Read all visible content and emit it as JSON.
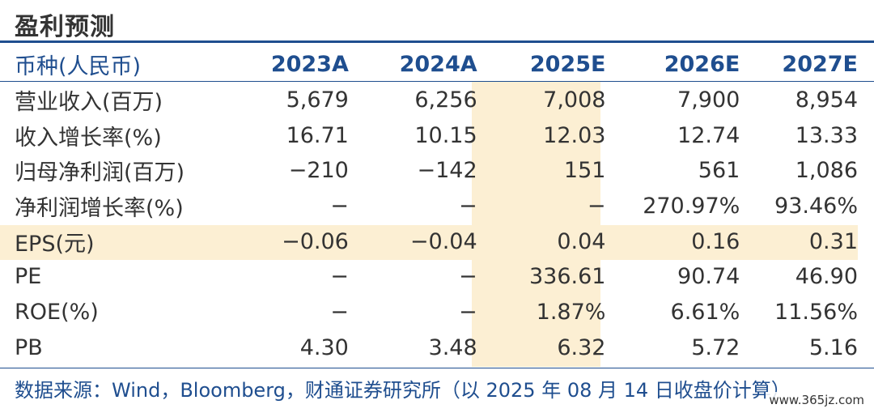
{
  "title": "盈利预测",
  "table": {
    "header": {
      "label": "币种(人民币)",
      "years": [
        "2023A",
        "2024A",
        "2025E",
        "2026E",
        "2027E"
      ]
    },
    "rows": [
      {
        "label": "营业收入(百万)",
        "values": [
          "5,679",
          "6,256",
          "7,008",
          "7,900",
          "8,954"
        ]
      },
      {
        "label": "收入增长率(%)",
        "values": [
          "16.71",
          "10.15",
          "12.03",
          "12.74",
          "13.33"
        ]
      },
      {
        "label": "归母净利润(百万)",
        "values": [
          "−210",
          "−142",
          "151",
          "561",
          "1,086"
        ]
      },
      {
        "label": "净利润增长率(%)",
        "values": [
          "−",
          "−",
          "−",
          "270.97%",
          "93.46%"
        ]
      },
      {
        "label": "EPS(元)",
        "values": [
          "−0.06",
          "−0.04",
          "0.04",
          "0.16",
          "0.31"
        ]
      },
      {
        "label": "PE",
        "values": [
          "−",
          "−",
          "336.61",
          "90.74",
          "46.90"
        ]
      },
      {
        "label": "ROE(%)",
        "values": [
          "−",
          "−",
          "1.87%",
          "6.61%",
          "11.56%"
        ]
      },
      {
        "label": "PB",
        "values": [
          "4.30",
          "3.48",
          "6.32",
          "5.72",
          "5.16"
        ]
      }
    ]
  },
  "source": "数据来源：Wind，Bloomberg，财通证券研究所（以 2025 年 08 月 14 日收盘价计算）",
  "watermark": "www.365jz.com",
  "colors": {
    "accent": "#1f4e8f",
    "highlight": "#fcefd3",
    "text": "#333333"
  }
}
